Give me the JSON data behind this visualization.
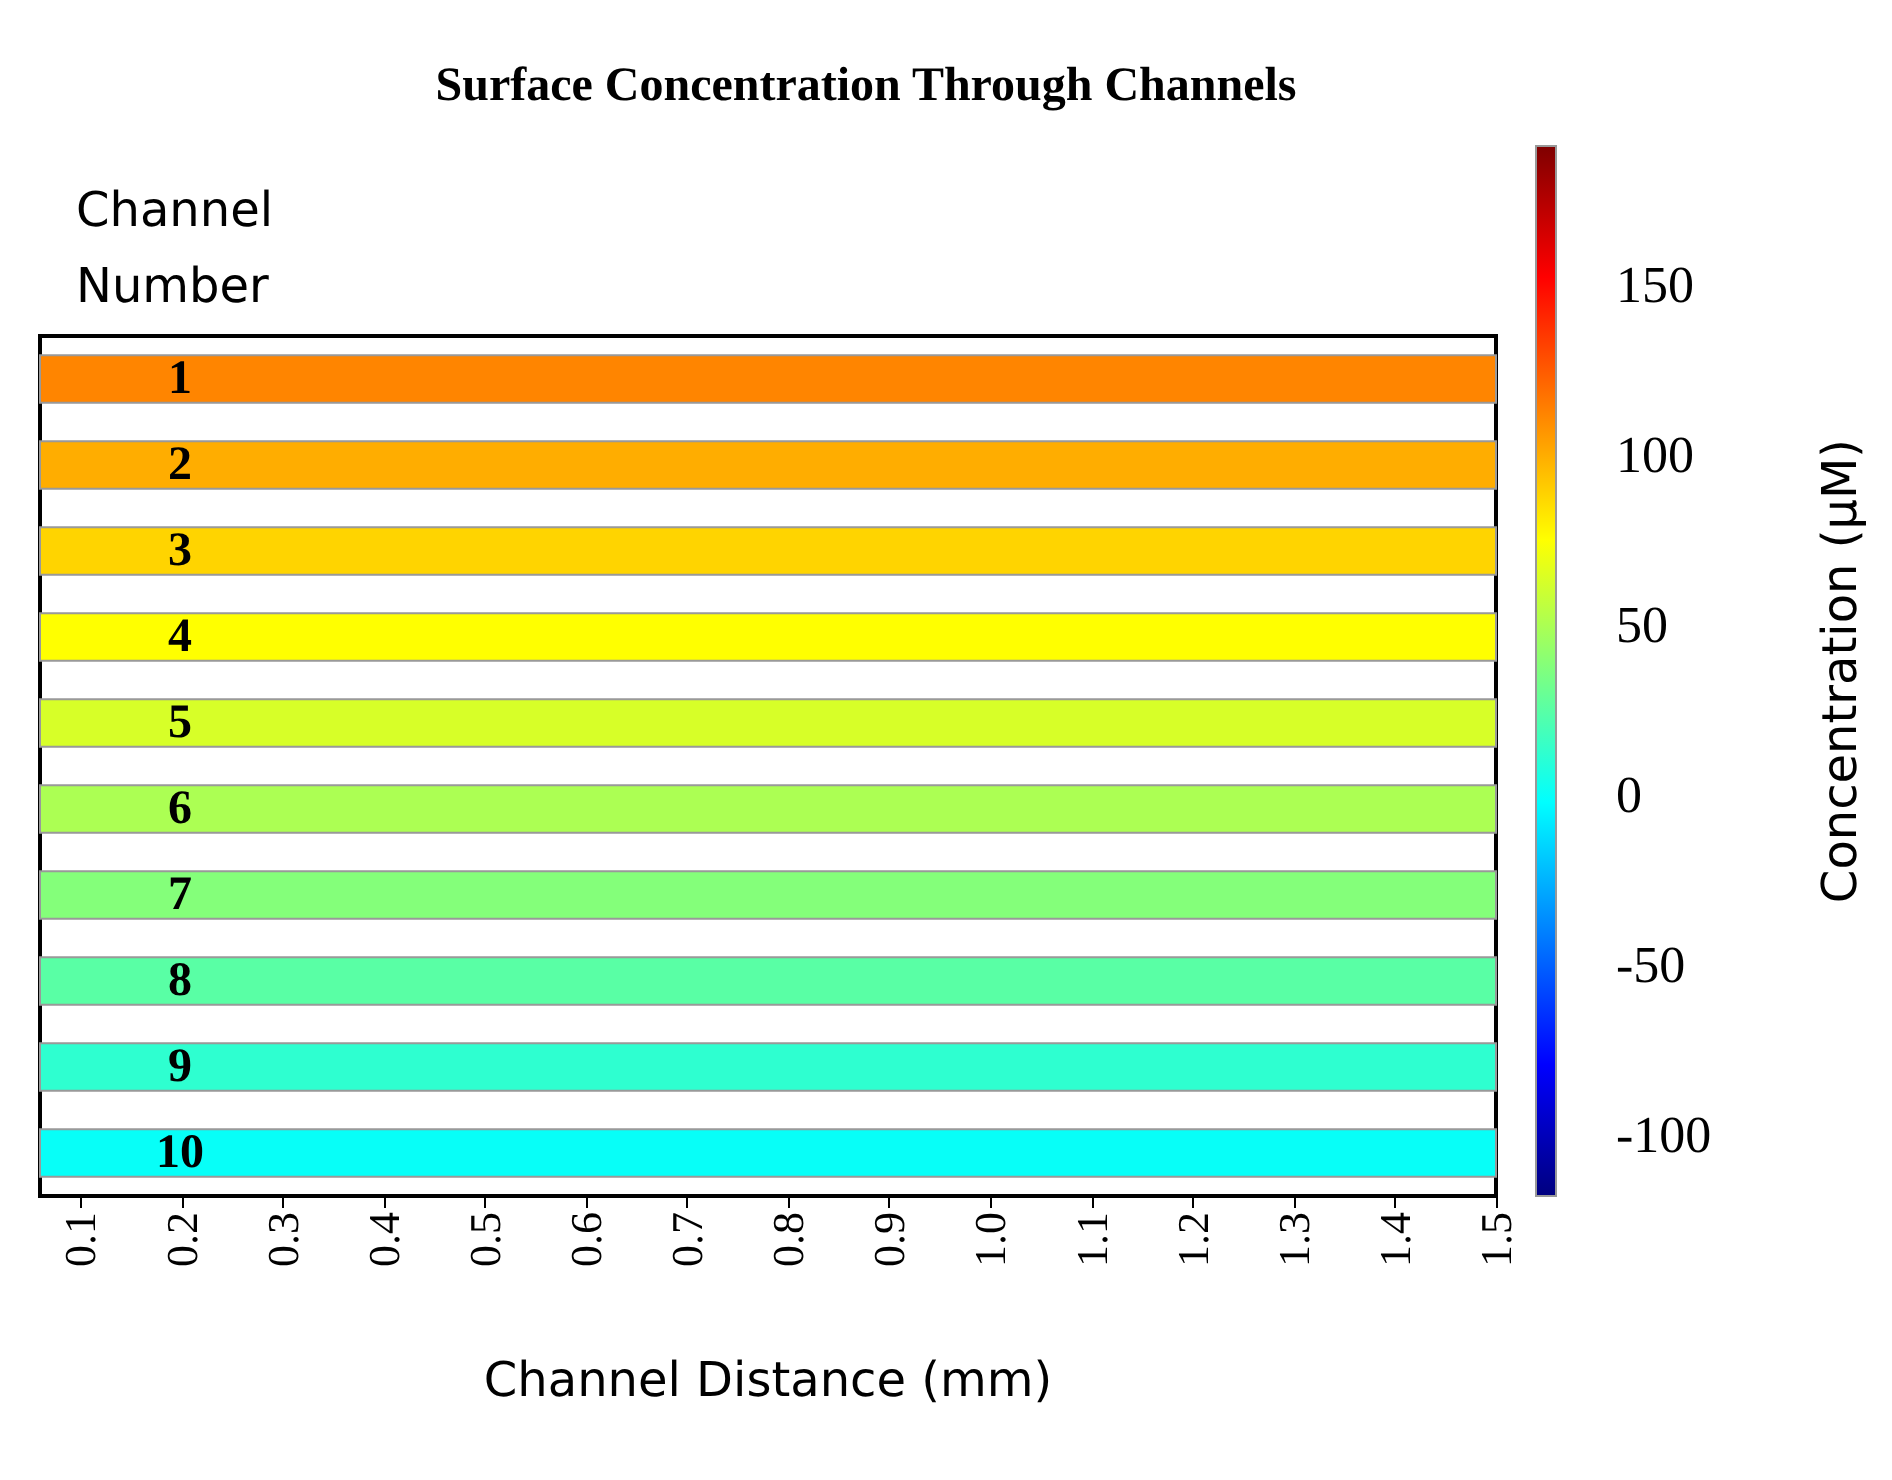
{
  "chart_data": {
    "type": "heatmap",
    "title": "Surface Concentration Through Channels",
    "xlabel": "Channel Distance (mm)",
    "ylabel": "Channel Number",
    "clabel": "Concentration (μM)",
    "y_categories": [
      "1",
      "2",
      "3",
      "4",
      "5",
      "6",
      "7",
      "8",
      "9",
      "10"
    ],
    "cells": [
      [
        112
      ],
      [
        100
      ],
      [
        88
      ],
      [
        75
      ],
      [
        63
      ],
      [
        50
      ],
      [
        38
      ],
      [
        25
      ],
      [
        12
      ],
      [
        0
      ]
    ],
    "xlim": [
      0.06,
      1.5
    ],
    "xticks": [
      0.1,
      0.2,
      0.3,
      0.4,
      0.5,
      0.6,
      0.7,
      0.8,
      0.9,
      {
        "value": 1,
        "label": "1.0"
      },
      1.1,
      1.2,
      1.3,
      1.4,
      1.5
    ],
    "clim": [
      -118,
      191
    ],
    "cticks": [
      -100,
      -50,
      0,
      50,
      100,
      150
    ]
  }
}
